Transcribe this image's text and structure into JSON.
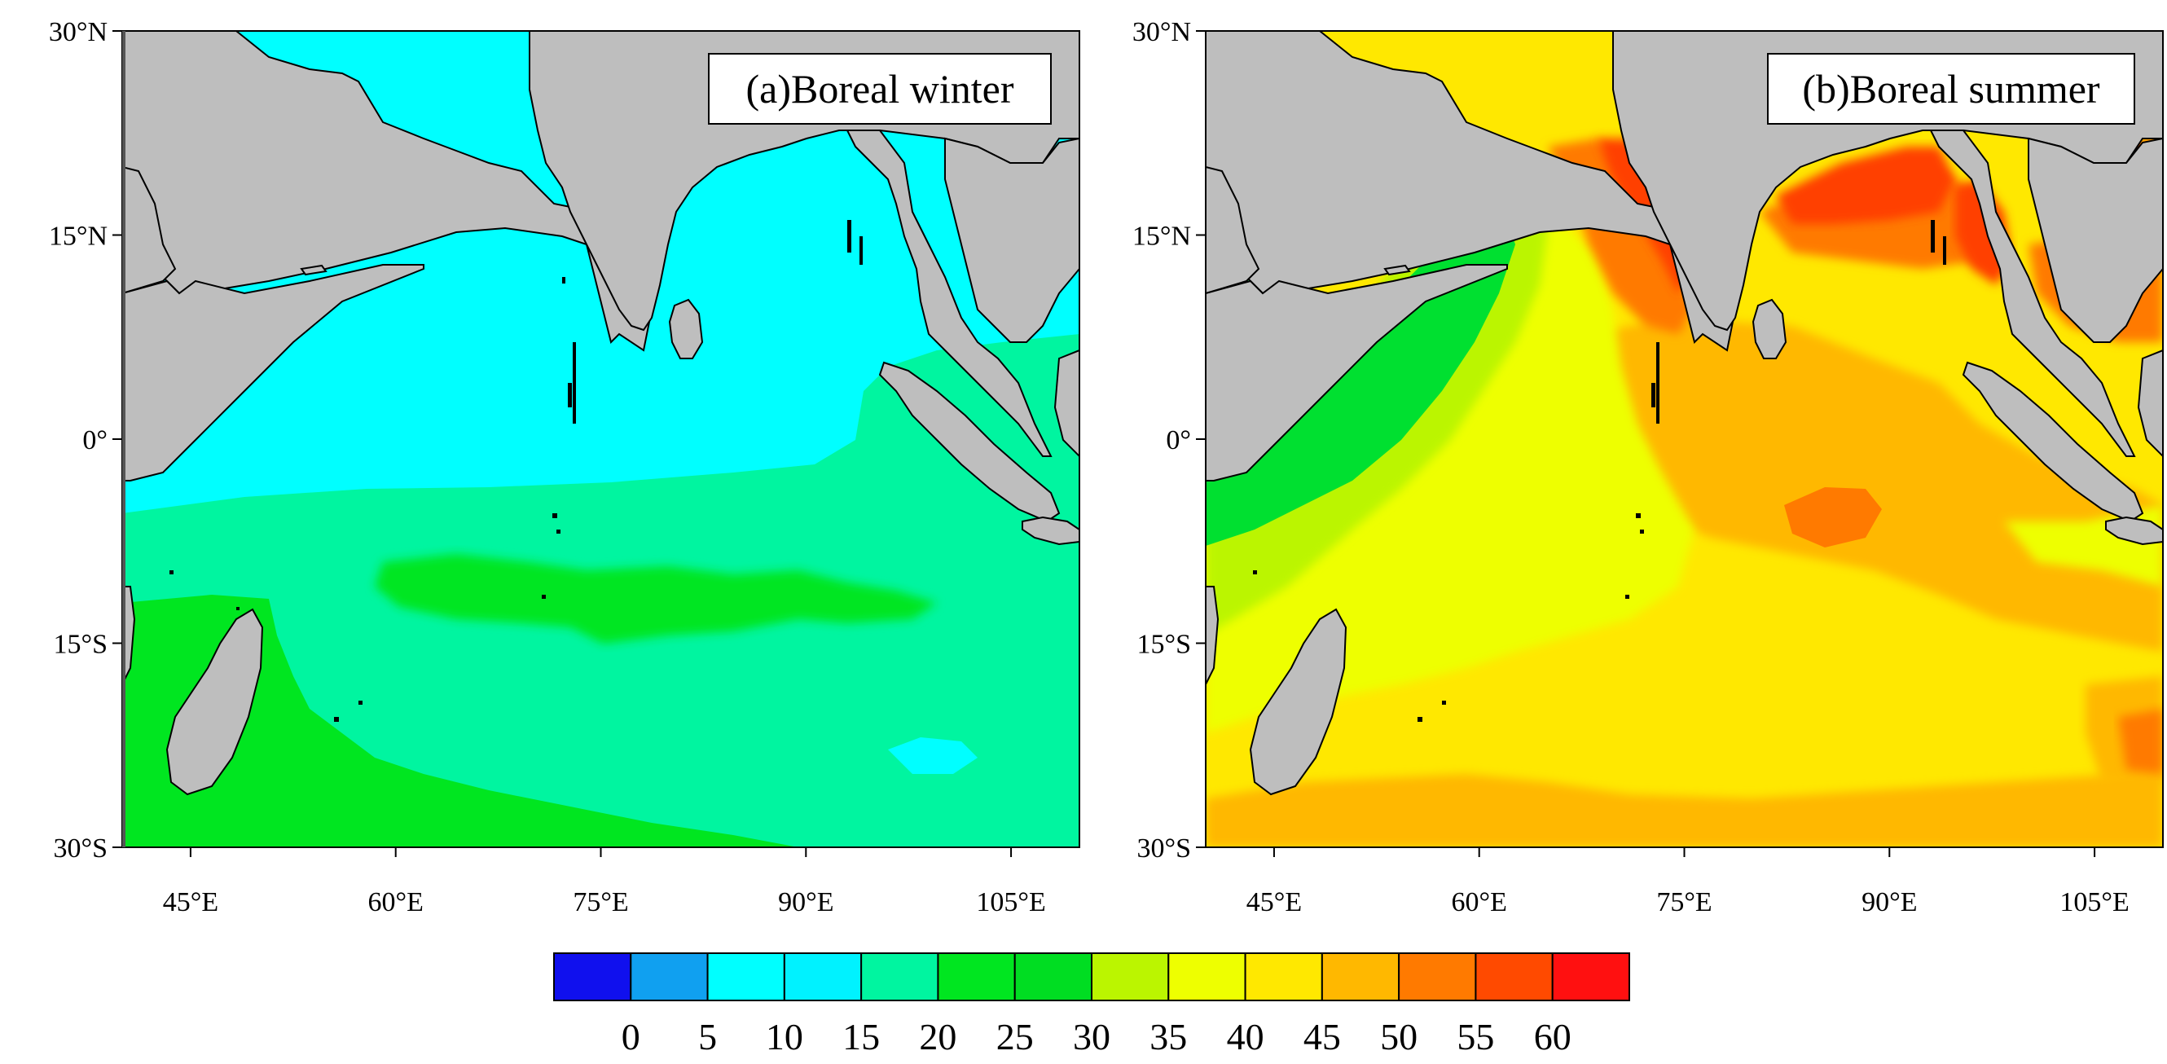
{
  "panels": [
    {
      "title": "(a)Boreal winter",
      "lat_ticks": [
        "30°N",
        "15°N",
        "0°",
        "15°S",
        "30°S"
      ],
      "lon_ticks": [
        "45°E",
        "60°E",
        "75°E",
        "90°E",
        "105°E"
      ]
    },
    {
      "title": "(b)Boreal summer",
      "lat_ticks": [
        "30°N",
        "15°N",
        "0°",
        "15°S",
        "30°S"
      ],
      "lon_ticks": [
        "45°E",
        "60°E",
        "75°E",
        "90°E",
        "105°E"
      ]
    }
  ],
  "colorbar": {
    "labels": [
      "0",
      "5",
      "10",
      "15",
      "20",
      "25",
      "30",
      "35",
      "40",
      "45",
      "50",
      "55",
      "60"
    ],
    "colors": [
      "#1010ee",
      "#10a0f0",
      "#00ffff",
      "#00f2ff",
      "#00f5a0",
      "#00e620",
      "#00dd22",
      "#bbf500",
      "#eeff00",
      "#ffe800",
      "#ffb800",
      "#ff7a00",
      "#ff4a00",
      "#ff1010"
    ]
  },
  "colors": {
    "land": "#bebebe",
    "winter_cyan": "#00ffff",
    "winter_aqua": "#00f5a0",
    "winter_green": "#00e620",
    "summer_green": "#00e030",
    "summer_aqua": "#00f0a0",
    "summer_lime": "#bbf500",
    "summer_yellow": "#eeff00",
    "summer_gold": "#ffe800",
    "summer_amber": "#ffb800",
    "summer_orange": "#ff7a00",
    "summer_red": "#ff4000"
  }
}
